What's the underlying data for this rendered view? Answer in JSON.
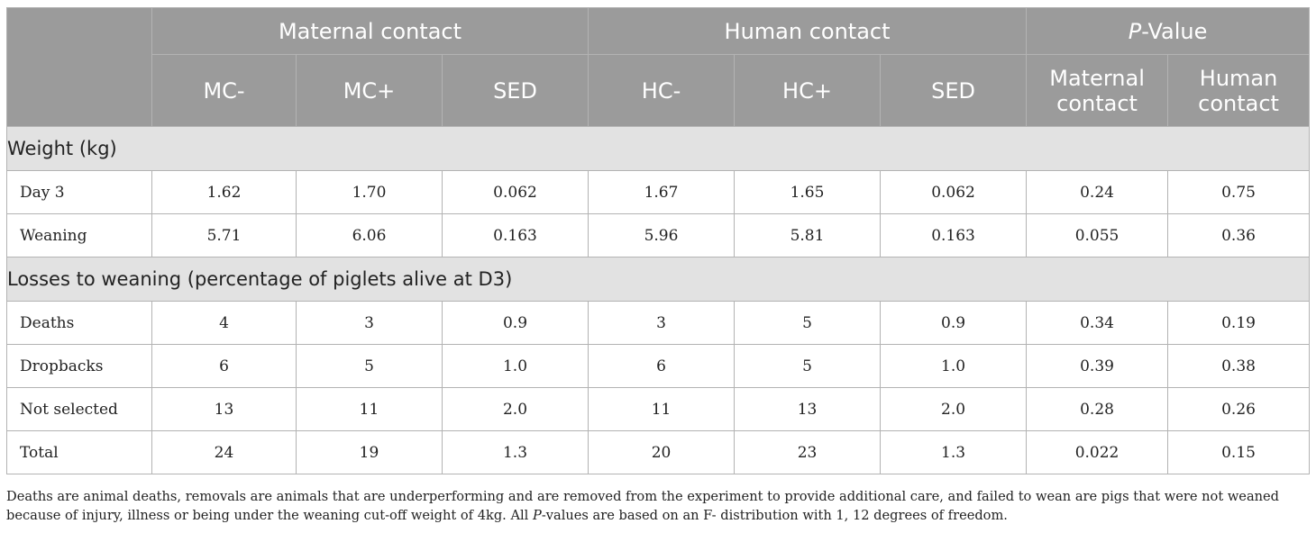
{
  "table": {
    "groups": {
      "maternal": "Maternal contact",
      "human": "Human contact",
      "pvalue_prefix": "P",
      "pvalue_suffix": "-Value"
    },
    "subheaders": [
      "MC-",
      "MC+",
      "SED",
      "HC-",
      "HC+",
      "SED",
      "Maternal contact",
      "Human contact"
    ],
    "sections": [
      {
        "title": "Weight (kg)",
        "rows": [
          {
            "label": "Day 3",
            "values": [
              "1.62",
              "1.70",
              "0.062",
              "1.67",
              "1.65",
              "0.062",
              "0.24",
              "0.75"
            ]
          },
          {
            "label": "Weaning",
            "values": [
              "5.71",
              "6.06",
              "0.163",
              "5.96",
              "5.81",
              "0.163",
              "0.055",
              "0.36"
            ]
          }
        ]
      },
      {
        "title": "Losses to weaning (percentage of piglets alive at D3)",
        "rows": [
          {
            "label": "Deaths",
            "values": [
              "4",
              "3",
              "0.9",
              "3",
              "5",
              "0.9",
              "0.34",
              "0.19"
            ]
          },
          {
            "label": "Dropbacks",
            "values": [
              "6",
              "5",
              "1.0",
              "6",
              "5",
              "1.0",
              "0.39",
              "0.38"
            ]
          },
          {
            "label": "Not selected",
            "values": [
              "13",
              "11",
              "2.0",
              "11",
              "13",
              "2.0",
              "0.28",
              "0.26"
            ]
          },
          {
            "label": "Total",
            "values": [
              "24",
              "19",
              "1.3",
              "20",
              "23",
              "1.3",
              "0.022",
              "0.15"
            ]
          }
        ]
      }
    ]
  },
  "footnote": {
    "part1": "Deaths are animal deaths, removals are animals that are underperforming and are removed from the experiment to provide additional care, and failed to wean are pigs that were not weaned because of injury, illness or being under the weaning cut-off weight of 4kg. All ",
    "italic": "P",
    "part2": "-values are based on an F- distribution with 1, 12 degrees of freedom."
  }
}
